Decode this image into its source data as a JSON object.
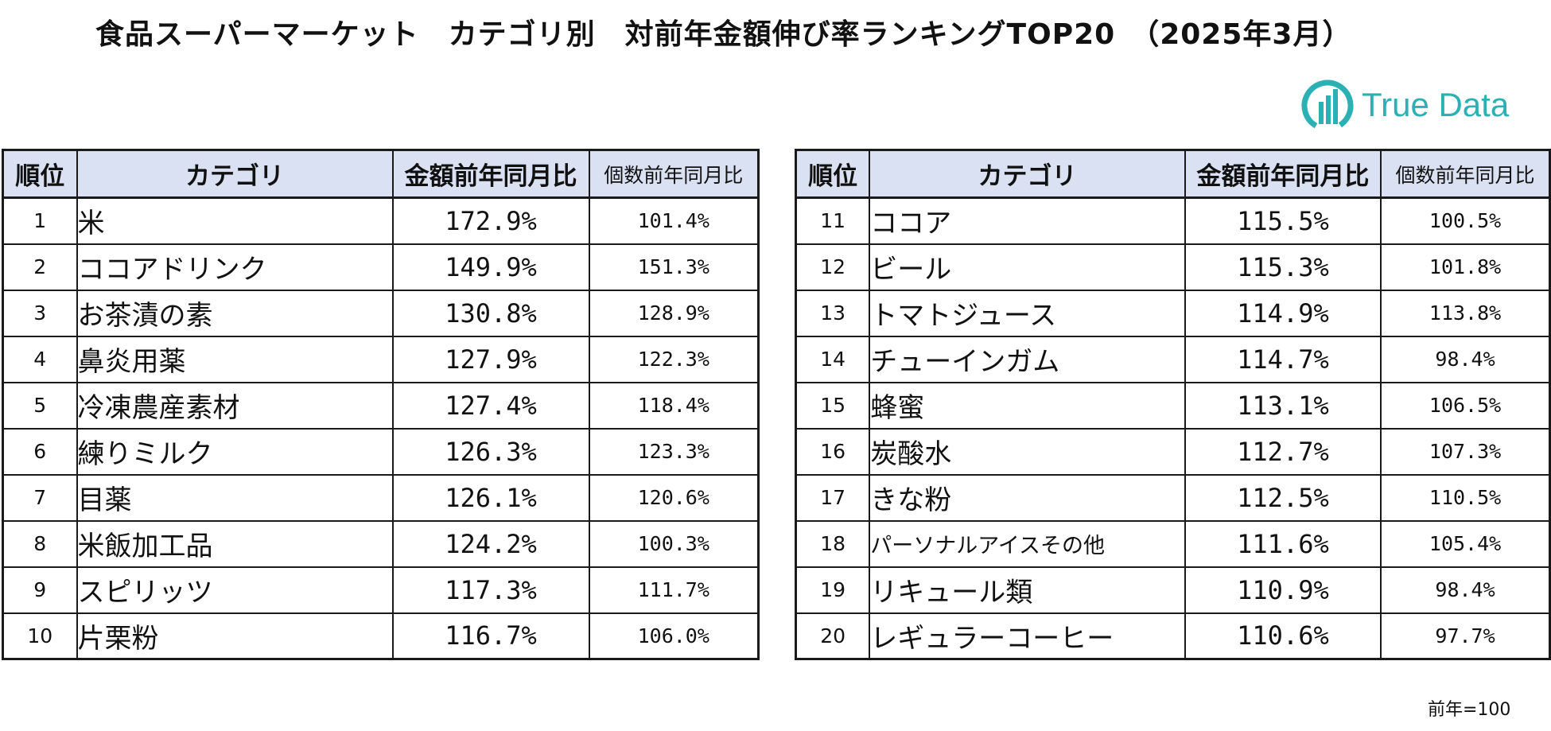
{
  "title": "食品スーパーマーケット　カテゴリ別　対前年金額伸び率ランキングTOP20　（2025年3月）",
  "logo": {
    "text": "True Data",
    "color": "#2bb0b3"
  },
  "headers": {
    "rank": "順位",
    "category": "カテゴリ",
    "amount_yoy": "金額前年同月比",
    "quantity_yoy": "個数前年同月比"
  },
  "colors": {
    "header_bg": "#d9e1f2",
    "border": "#1a1a1a",
    "logo": "#2bb0b3"
  },
  "left_rows": [
    {
      "rank": "1",
      "category": "米",
      "amount": "172.9%",
      "quantity": "101.4%"
    },
    {
      "rank": "2",
      "category": "ココアドリンク",
      "amount": "149.9%",
      "quantity": "151.3%"
    },
    {
      "rank": "3",
      "category": "お茶漬の素",
      "amount": "130.8%",
      "quantity": "128.9%"
    },
    {
      "rank": "4",
      "category": "鼻炎用薬",
      "amount": "127.9%",
      "quantity": "122.3%"
    },
    {
      "rank": "5",
      "category": "冷凍農産素材",
      "amount": "127.4%",
      "quantity": "118.4%"
    },
    {
      "rank": "6",
      "category": "練りミルク",
      "amount": "126.3%",
      "quantity": "123.3%"
    },
    {
      "rank": "7",
      "category": "目薬",
      "amount": "126.1%",
      "quantity": "120.6%"
    },
    {
      "rank": "8",
      "category": "米飯加工品",
      "amount": "124.2%",
      "quantity": "100.3%"
    },
    {
      "rank": "9",
      "category": "スピリッツ",
      "amount": "117.3%",
      "quantity": "111.7%"
    },
    {
      "rank": "10",
      "category": "片栗粉",
      "amount": "116.7%",
      "quantity": "106.0%"
    }
  ],
  "right_rows": [
    {
      "rank": "11",
      "category": "ココア",
      "amount": "115.5%",
      "quantity": "100.5%"
    },
    {
      "rank": "12",
      "category": "ビール",
      "amount": "115.3%",
      "quantity": "101.8%"
    },
    {
      "rank": "13",
      "category": "トマトジュース",
      "amount": "114.9%",
      "quantity": "113.8%"
    },
    {
      "rank": "14",
      "category": "チューインガム",
      "amount": "114.7%",
      "quantity": "98.4%"
    },
    {
      "rank": "15",
      "category": "蜂蜜",
      "amount": "113.1%",
      "quantity": "106.5%"
    },
    {
      "rank": "16",
      "category": "炭酸水",
      "amount": "112.7%",
      "quantity": "107.3%"
    },
    {
      "rank": "17",
      "category": "きな粉",
      "amount": "112.5%",
      "quantity": "110.5%"
    },
    {
      "rank": "18",
      "category": "パーソナルアイスその他",
      "amount": "111.6%",
      "quantity": "105.4%"
    },
    {
      "rank": "19",
      "category": "リキュール類",
      "amount": "110.9%",
      "quantity": "98.4%"
    },
    {
      "rank": "20",
      "category": "レギュラーコーヒー",
      "amount": "110.6%",
      "quantity": "97.7%"
    }
  ],
  "note": "前年=100"
}
